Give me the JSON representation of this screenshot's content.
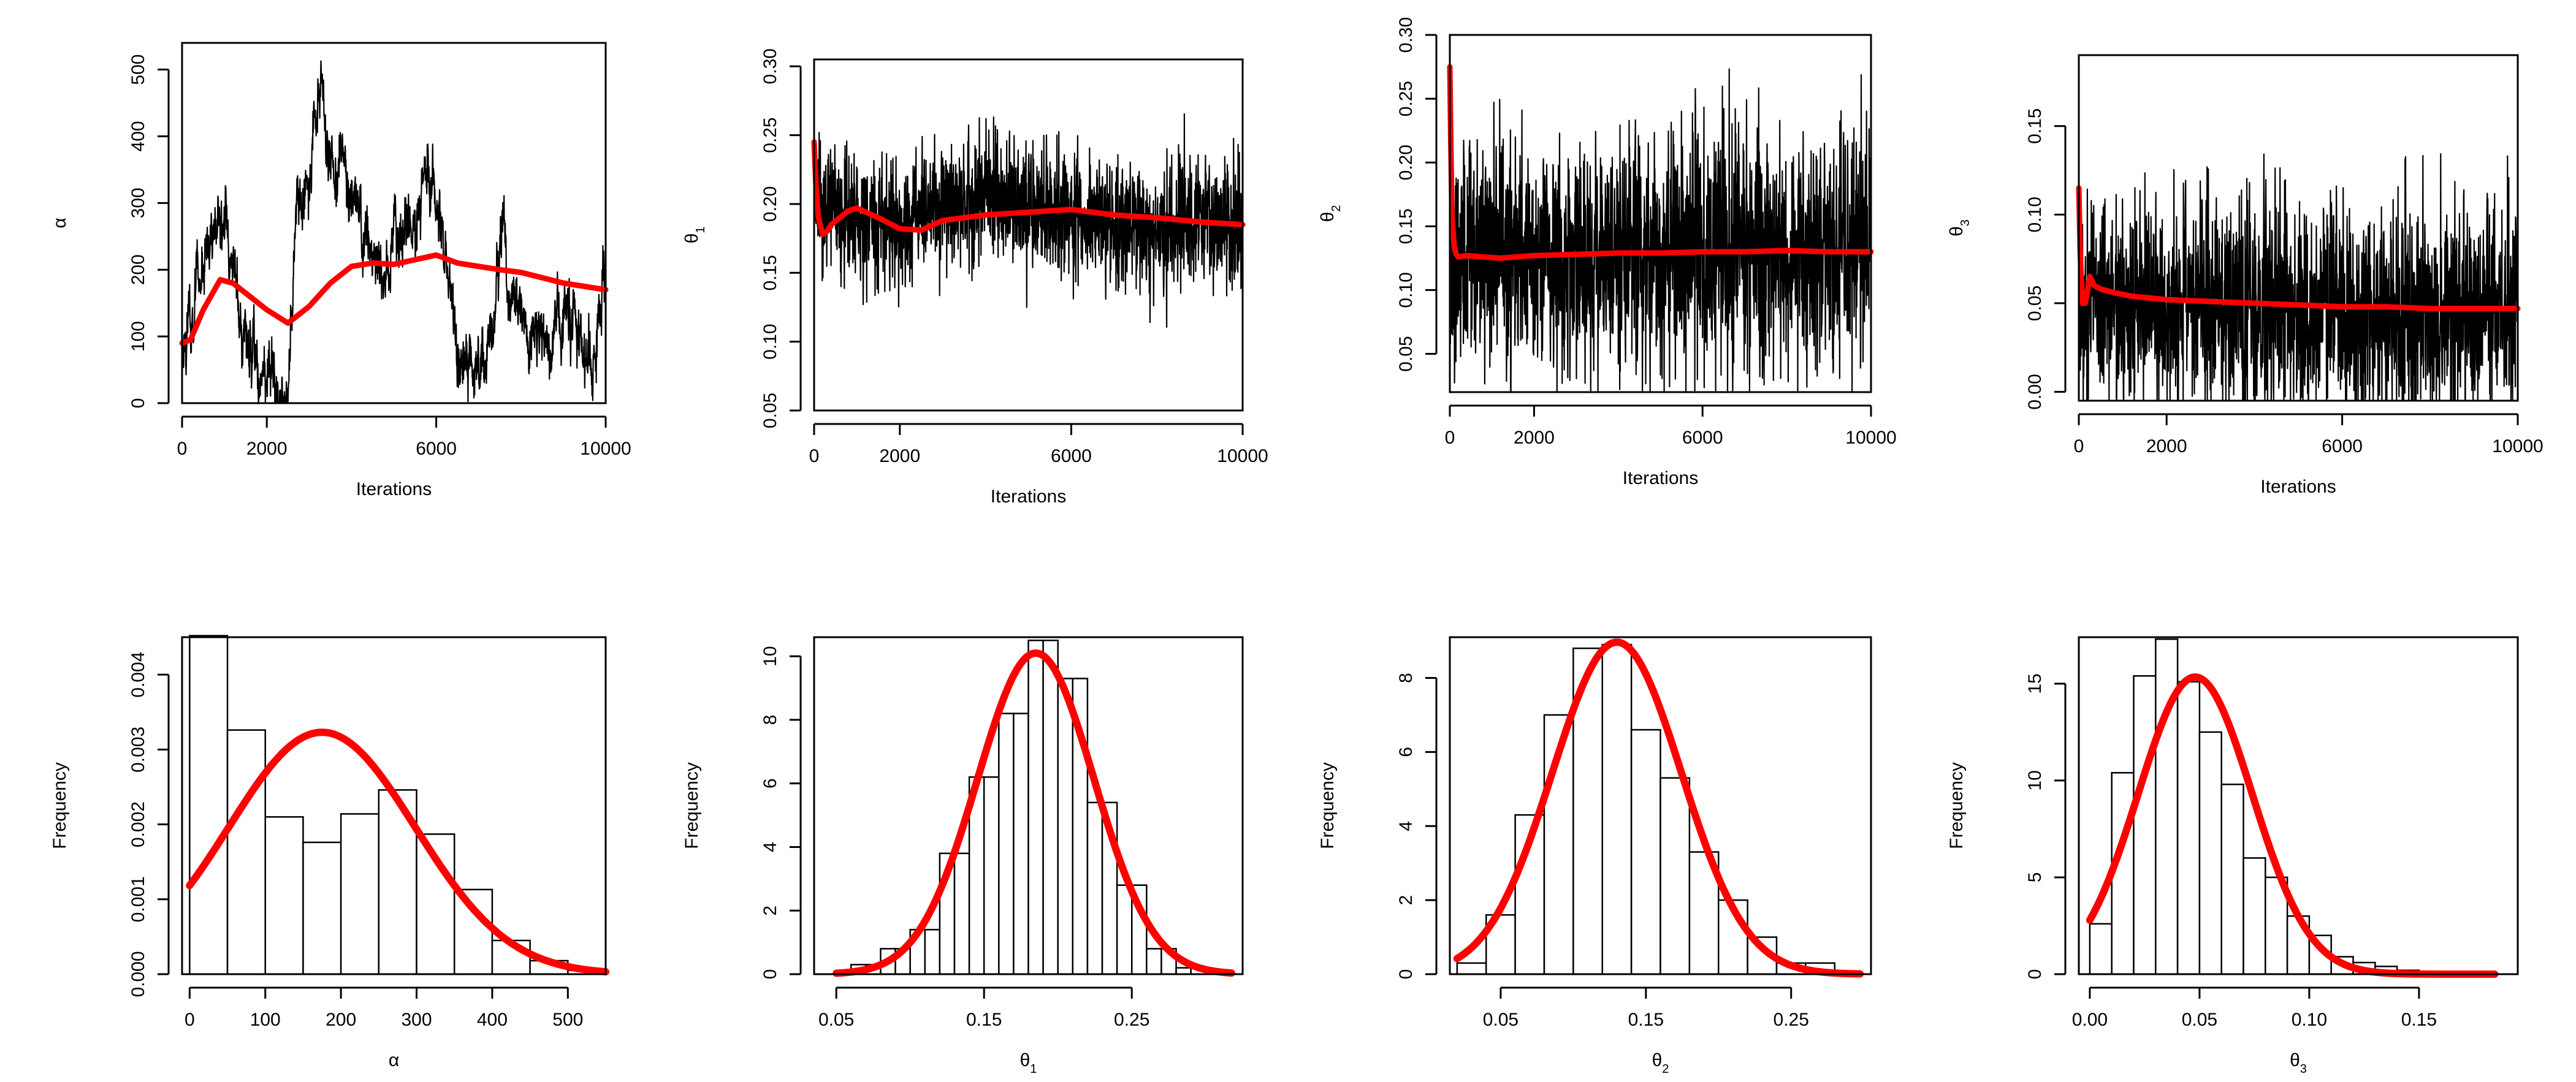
{
  "colors": {
    "trace": "#000000",
    "running_mean": "#ff0000",
    "density": "#ff0000",
    "bar_edge": "#000000",
    "bar_fill": "#ffffff"
  },
  "chart_data": [
    {
      "type": "line",
      "id": "trace-alpha",
      "title": "",
      "xlabel": "Iterations",
      "ylabel": "α",
      "ylabel_sub": "",
      "xlim": [
        0,
        10000
      ],
      "ylim": [
        0,
        540
      ],
      "xticks": [
        0,
        2000,
        6000,
        10000
      ],
      "yticks": [
        0,
        100,
        200,
        300,
        400,
        500
      ],
      "xtick_labels": [
        "0",
        "2000",
        "6000",
        "10000"
      ],
      "ytick_labels": [
        "0",
        "100",
        "200",
        "300",
        "400",
        "500"
      ],
      "trace_mode": "walk",
      "trace_seed": 11,
      "trace_anchors": [
        [
          0,
          95
        ],
        [
          300,
          160
        ],
        [
          600,
          250
        ],
        [
          900,
          300
        ],
        [
          1200,
          200
        ],
        [
          1500,
          110
        ],
        [
          1800,
          60
        ],
        [
          2100,
          40
        ],
        [
          2500,
          30
        ],
        [
          2700,
          280
        ],
        [
          3000,
          330
        ],
        [
          3200,
          500
        ],
        [
          3500,
          380
        ],
        [
          3800,
          350
        ],
        [
          4200,
          280
        ],
        [
          4600,
          200
        ],
        [
          5000,
          220
        ],
        [
          5400,
          260
        ],
        [
          5800,
          330
        ],
        [
          6100,
          250
        ],
        [
          6400,
          100
        ],
        [
          6800,
          40
        ],
        [
          7200,
          80
        ],
        [
          7600,
          250
        ],
        [
          7900,
          150
        ],
        [
          8200,
          80
        ],
        [
          8600,
          90
        ],
        [
          9000,
          130
        ],
        [
          9400,
          90
        ],
        [
          9800,
          80
        ],
        [
          10000,
          200
        ]
      ],
      "trace_noise": 14,
      "trace_spread": 45,
      "series": [
        {
          "name": "running mean",
          "x": [
            0,
            200,
            500,
            900,
            1200,
            1600,
            2000,
            2500,
            3000,
            3500,
            4000,
            4500,
            5000,
            5500,
            6000,
            6500,
            7000,
            7500,
            8000,
            8500,
            9000,
            9500,
            10000
          ],
          "y": [
            90,
            95,
            140,
            185,
            180,
            160,
            140,
            120,
            145,
            180,
            205,
            210,
            208,
            215,
            222,
            210,
            205,
            200,
            196,
            188,
            180,
            175,
            170
          ]
        }
      ]
    },
    {
      "type": "line",
      "id": "trace-theta1",
      "title": "",
      "xlabel": "Iterations",
      "ylabel": "θ",
      "ylabel_sub": "1",
      "xlim": [
        0,
        10000
      ],
      "ylim": [
        0.05,
        0.305
      ],
      "xticks": [
        0,
        2000,
        6000,
        10000
      ],
      "yticks": [
        0.05,
        0.1,
        0.15,
        0.2,
        0.25,
        0.3
      ],
      "xtick_labels": [
        "0",
        "2000",
        "6000",
        "10000"
      ],
      "ytick_labels": [
        "0.05",
        "0.10",
        "0.15",
        "0.20",
        "0.25",
        "0.30"
      ],
      "trace_mode": "band",
      "trace_seed": 23,
      "trace_anchors": [
        [
          0,
          0.2
        ],
        [
          1000,
          0.19
        ],
        [
          2000,
          0.18
        ],
        [
          3000,
          0.2
        ],
        [
          4000,
          0.21
        ],
        [
          5000,
          0.2
        ],
        [
          6000,
          0.19
        ],
        [
          7000,
          0.19
        ],
        [
          8000,
          0.18
        ],
        [
          9000,
          0.19
        ],
        [
          10000,
          0.18
        ]
      ],
      "trace_noise": 0.022,
      "trace_spread": 0.025,
      "series": [
        {
          "name": "running mean",
          "x": [
            0,
            40,
            100,
            200,
            300,
            400,
            600,
            800,
            1000,
            1500,
            2000,
            2500,
            3000,
            4000,
            5000,
            6000,
            7000,
            8000,
            9000,
            10000
          ],
          "y": [
            0.245,
            0.215,
            0.19,
            0.178,
            0.18,
            0.185,
            0.19,
            0.195,
            0.197,
            0.19,
            0.182,
            0.181,
            0.188,
            0.192,
            0.194,
            0.196,
            0.192,
            0.19,
            0.187,
            0.185
          ]
        }
      ]
    },
    {
      "type": "line",
      "id": "trace-theta2",
      "title": "",
      "xlabel": "Iterations",
      "ylabel": "θ",
      "ylabel_sub": "2",
      "xlim": [
        0,
        10000
      ],
      "ylim": [
        0.02,
        0.3
      ],
      "xticks": [
        0,
        2000,
        6000,
        10000
      ],
      "yticks": [
        0.05,
        0.1,
        0.15,
        0.2,
        0.25,
        0.3
      ],
      "xtick_labels": [
        "0",
        "2000",
        "6000",
        "10000"
      ],
      "ytick_labels": [
        "0.05",
        "0.10",
        "0.15",
        "0.20",
        "0.25",
        "0.30"
      ],
      "trace_mode": "band",
      "trace_seed": 37,
      "trace_anchors": [
        [
          0,
          0.13
        ],
        [
          10000,
          0.13
        ]
      ],
      "trace_noise": 0.045,
      "trace_spread": 0.05,
      "series": [
        {
          "name": "running mean",
          "x": [
            0,
            20,
            50,
            100,
            150,
            200,
            400,
            800,
            1200,
            2000,
            3000,
            4000,
            5000,
            6000,
            7000,
            8000,
            9000,
            10000
          ],
          "y": [
            0.275,
            0.22,
            0.16,
            0.135,
            0.128,
            0.126,
            0.127,
            0.126,
            0.125,
            0.127,
            0.128,
            0.129,
            0.129,
            0.13,
            0.13,
            0.131,
            0.13,
            0.13
          ]
        }
      ]
    },
    {
      "type": "line",
      "id": "trace-theta3",
      "title": "",
      "xlabel": "Iterations",
      "ylabel": "θ",
      "ylabel_sub": "3",
      "xlim": [
        0,
        10000
      ],
      "ylim": [
        -0.005,
        0.19
      ],
      "xticks": [
        0,
        2000,
        6000,
        10000
      ],
      "yticks": [
        0.0,
        0.05,
        0.1,
        0.15
      ],
      "xtick_labels": [
        "0",
        "2000",
        "6000",
        "10000"
      ],
      "ytick_labels": [
        "0.00",
        "0.05",
        "0.10",
        "0.15"
      ],
      "trace_mode": "band",
      "trace_seed": 53,
      "trace_anchors": [
        [
          0,
          0.05
        ],
        [
          10000,
          0.045
        ]
      ],
      "trace_noise": 0.03,
      "trace_spread": 0.035,
      "series": [
        {
          "name": "running mean",
          "x": [
            0,
            30,
            80,
            150,
            250,
            350,
            500,
            800,
            1200,
            2000,
            3000,
            4000,
            5000,
            6000,
            7000,
            8000,
            9000,
            10000
          ],
          "y": [
            0.115,
            0.08,
            0.05,
            0.05,
            0.065,
            0.06,
            0.058,
            0.056,
            0.054,
            0.052,
            0.051,
            0.05,
            0.049,
            0.048,
            0.048,
            0.047,
            0.047,
            0.047
          ]
        }
      ]
    },
    {
      "type": "histogram",
      "id": "hist-alpha",
      "title": "",
      "xlabel": "α",
      "xlabel_sub": "",
      "ylabel": "Frequency",
      "xlim": [
        -10,
        550
      ],
      "ylim": [
        0,
        0.0045
      ],
      "xticks": [
        0,
        100,
        200,
        300,
        400,
        500
      ],
      "yticks": [
        0,
        0.001,
        0.002,
        0.003,
        0.004
      ],
      "xtick_labels": [
        "0",
        "100",
        "200",
        "300",
        "400",
        "500"
      ],
      "ytick_labels": [
        "0.000",
        "0.001",
        "0.002",
        "0.003",
        "0.004"
      ],
      "bins": [
        [
          0,
          50
        ],
        [
          50,
          100
        ],
        [
          100,
          150
        ],
        [
          150,
          200
        ],
        [
          200,
          250
        ],
        [
          250,
          300
        ],
        [
          300,
          350
        ],
        [
          350,
          400
        ],
        [
          400,
          450
        ],
        [
          450,
          500
        ],
        [
          500,
          550
        ]
      ],
      "values": [
        0.00452,
        0.00326,
        0.0021,
        0.00176,
        0.00214,
        0.00246,
        0.00187,
        0.00113,
        0.00045,
        0.00018,
        5e-05
      ],
      "density": {
        "name": "normal fit",
        "mean": 175,
        "sd": 123.5,
        "scale": 1.0
      }
    },
    {
      "type": "histogram",
      "id": "hist-theta1",
      "title": "",
      "xlabel": "θ",
      "xlabel_sub": "1",
      "ylabel": "Frequency",
      "xlim": [
        0.035,
        0.325
      ],
      "ylim": [
        0,
        10.6
      ],
      "xticks": [
        0.05,
        0.15,
        0.25
      ],
      "yticks": [
        0,
        2,
        4,
        6,
        8,
        10
      ],
      "xtick_labels": [
        "0.05",
        "0.15",
        "0.25"
      ],
      "ytick_labels": [
        "0",
        "2",
        "4",
        "6",
        "8",
        "10"
      ],
      "bins": [
        [
          0.06,
          0.07
        ],
        [
          0.07,
          0.08
        ],
        [
          0.08,
          0.09
        ],
        [
          0.09,
          0.1
        ],
        [
          0.1,
          0.11
        ],
        [
          0.11,
          0.12
        ],
        [
          0.12,
          0.13
        ],
        [
          0.13,
          0.14
        ],
        [
          0.14,
          0.15
        ],
        [
          0.15,
          0.16
        ],
        [
          0.16,
          0.17
        ],
        [
          0.17,
          0.18
        ],
        [
          0.18,
          0.19
        ],
        [
          0.19,
          0.2
        ],
        [
          0.2,
          0.21
        ],
        [
          0.21,
          0.22
        ],
        [
          0.22,
          0.23
        ],
        [
          0.23,
          0.24
        ],
        [
          0.24,
          0.25
        ],
        [
          0.25,
          0.26
        ],
        [
          0.26,
          0.27
        ],
        [
          0.27,
          0.28
        ],
        [
          0.28,
          0.29
        ],
        [
          0.29,
          0.3
        ]
      ],
      "values": [
        0.3,
        0.3,
        0.8,
        0.8,
        1.4,
        1.4,
        3.8,
        3.8,
        6.2,
        6.2,
        8.2,
        8.2,
        10.5,
        10.5,
        9.3,
        9.3,
        5.4,
        5.4,
        2.8,
        2.8,
        0.8,
        0.8,
        0.2,
        0.2
      ],
      "density": {
        "name": "normal fit",
        "mean": 0.185,
        "sd": 0.0395,
        "scale": 1.0
      }
    },
    {
      "type": "histogram",
      "id": "hist-theta2",
      "title": "",
      "xlabel": "θ",
      "xlabel_sub": "2",
      "ylabel": "Frequency",
      "xlim": [
        0.015,
        0.305
      ],
      "ylim": [
        0,
        9.1
      ],
      "xticks": [
        0.05,
        0.15,
        0.25
      ],
      "yticks": [
        0,
        2,
        4,
        6,
        8
      ],
      "xtick_labels": [
        "0.05",
        "0.15",
        "0.25"
      ],
      "ytick_labels": [
        "0",
        "2",
        "4",
        "6",
        "8"
      ],
      "bins": [
        [
          0.02,
          0.04
        ],
        [
          0.04,
          0.06
        ],
        [
          0.06,
          0.08
        ],
        [
          0.08,
          0.1
        ],
        [
          0.1,
          0.12
        ],
        [
          0.12,
          0.14
        ],
        [
          0.14,
          0.16
        ],
        [
          0.16,
          0.18
        ],
        [
          0.18,
          0.2
        ],
        [
          0.2,
          0.22
        ],
        [
          0.22,
          0.24
        ],
        [
          0.24,
          0.26
        ],
        [
          0.26,
          0.28
        ]
      ],
      "values": [
        0.3,
        1.6,
        4.3,
        7.0,
        8.8,
        8.9,
        6.6,
        5.3,
        3.3,
        2.0,
        1.0,
        0.3,
        0.3
      ],
      "density": {
        "name": "normal fit",
        "mean": 0.13,
        "sd": 0.0445,
        "scale": 1.0
      }
    },
    {
      "type": "histogram",
      "id": "hist-theta3",
      "title": "",
      "xlabel": "θ",
      "xlabel_sub": "3",
      "ylabel": "Frequency",
      "xlim": [
        -0.005,
        0.195
      ],
      "ylim": [
        0,
        17.4
      ],
      "xticks": [
        0.0,
        0.05,
        0.1,
        0.15
      ],
      "yticks": [
        0,
        5,
        10,
        15
      ],
      "xtick_labels": [
        "0.00",
        "0.05",
        "0.10",
        "0.15"
      ],
      "ytick_labels": [
        "0",
        "5",
        "10",
        "15"
      ],
      "bins": [
        [
          0.0,
          0.01
        ],
        [
          0.01,
          0.02
        ],
        [
          0.02,
          0.03
        ],
        [
          0.03,
          0.04
        ],
        [
          0.04,
          0.05
        ],
        [
          0.05,
          0.06
        ],
        [
          0.06,
          0.07
        ],
        [
          0.07,
          0.08
        ],
        [
          0.08,
          0.09
        ],
        [
          0.09,
          0.1
        ],
        [
          0.1,
          0.11
        ],
        [
          0.11,
          0.12
        ],
        [
          0.12,
          0.13
        ],
        [
          0.13,
          0.14
        ],
        [
          0.14,
          0.15
        ],
        [
          0.15,
          0.16
        ]
      ],
      "values": [
        2.6,
        10.4,
        15.4,
        17.3,
        15.1,
        12.5,
        9.8,
        6.0,
        5.0,
        3.0,
        2.0,
        0.9,
        0.6,
        0.4,
        0.2,
        0.1
      ],
      "density": {
        "name": "normal fit",
        "mean": 0.048,
        "sd": 0.026,
        "scale": 1.0
      }
    }
  ]
}
